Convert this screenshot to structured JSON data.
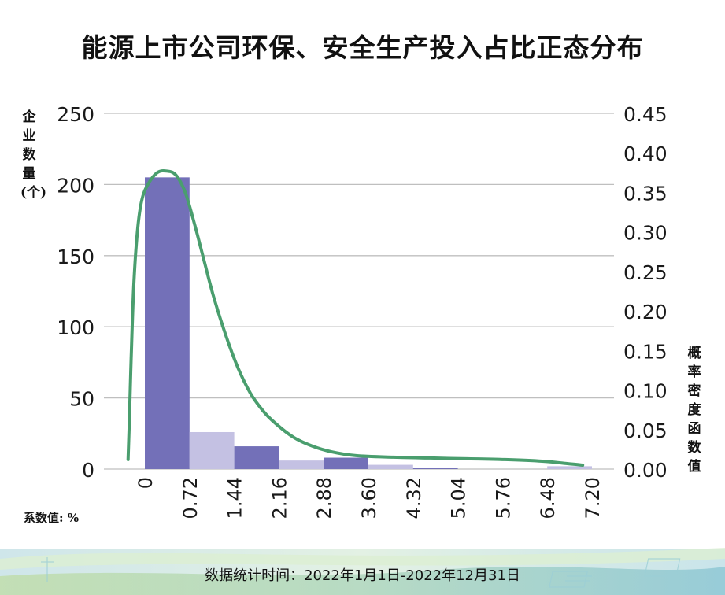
{
  "chart_data": {
    "type": "bar",
    "title": "能源上市公司环保、安全生产投入占比正态分布",
    "ylabel": "企业数量(个)",
    "y2label": "概率密度函数值",
    "xlabel": "系数值: %",
    "x_ticks": [
      "0",
      "0.72",
      "1.44",
      "2.16",
      "2.88",
      "3.60",
      "4.32",
      "5.04",
      "5.76",
      "6.48",
      "7.20"
    ],
    "bins": [
      {
        "from": 0,
        "to": 0.72,
        "value": 205
      },
      {
        "from": 0.72,
        "to": 1.44,
        "value": 26
      },
      {
        "from": 1.44,
        "to": 2.16,
        "value": 16
      },
      {
        "from": 2.16,
        "to": 2.88,
        "value": 6
      },
      {
        "from": 2.88,
        "to": 3.6,
        "value": 8
      },
      {
        "from": 3.6,
        "to": 4.32,
        "value": 3
      },
      {
        "from": 4.32,
        "to": 5.04,
        "value": 1
      },
      {
        "from": 5.04,
        "to": 5.76,
        "value": 0
      },
      {
        "from": 5.76,
        "to": 6.48,
        "value": 0
      },
      {
        "from": 6.48,
        "to": 7.2,
        "value": 2
      }
    ],
    "ylim": [
      0,
      250
    ],
    "y_ticks": [
      "0",
      "50",
      "100",
      "150",
      "200",
      "250"
    ],
    "y2lim": [
      0,
      0.45
    ],
    "y2_ticks": [
      "0.00",
      "0.05",
      "0.10",
      "0.15",
      "0.20",
      "0.25",
      "0.30",
      "0.35",
      "0.40",
      "0.45"
    ],
    "density_curve": {
      "x": [
        -0.27,
        -0.25,
        -0.22,
        -0.18,
        -0.12,
        -0.05,
        0.05,
        0.2,
        0.35,
        0.5,
        0.65,
        0.8,
        0.95,
        1.1,
        1.3,
        1.5,
        1.7,
        1.9,
        2.1,
        2.4,
        2.7,
        3.0,
        3.4,
        4.0,
        4.6,
        5.2,
        5.8,
        6.4,
        6.8,
        7.05
      ],
      "y": [
        0.012,
        0.06,
        0.14,
        0.23,
        0.3,
        0.34,
        0.36,
        0.375,
        0.377,
        0.372,
        0.35,
        0.31,
        0.265,
        0.22,
        0.17,
        0.128,
        0.096,
        0.074,
        0.058,
        0.04,
        0.029,
        0.022,
        0.017,
        0.015,
        0.014,
        0.013,
        0.012,
        0.01,
        0.007,
        0.005
      ]
    },
    "colors": {
      "bar_dark": "#7370b8",
      "bar_light": "#c4c1e3",
      "curve": "#4a9e6e",
      "grid": "#bfbfbf"
    },
    "grid": true
  },
  "footer": {
    "text": "数据统计时间：2022年1月1日-2022年12月31日"
  }
}
